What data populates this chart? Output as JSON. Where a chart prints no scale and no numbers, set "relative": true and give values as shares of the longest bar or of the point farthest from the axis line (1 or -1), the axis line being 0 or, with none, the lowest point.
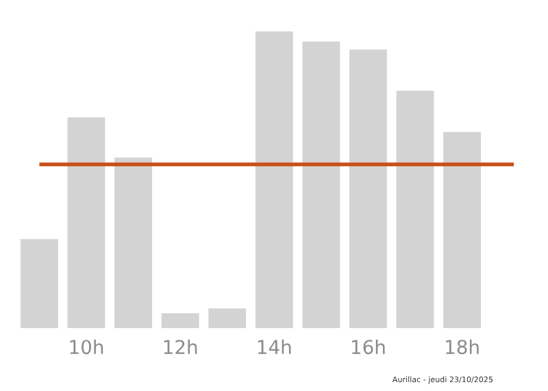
{
  "chart_data": {
    "type": "bar",
    "relative": true,
    "categories": [
      null,
      "10h",
      null,
      "12h",
      null,
      "14h",
      null,
      "16h",
      null,
      "18h"
    ],
    "values": [
      0.3,
      0.71,
      0.575,
      0.05,
      0.066,
      1,
      0.966,
      0.939,
      0.8,
      0.661
    ],
    "color": "#d3d3d3",
    "ref_lines": [
      {
        "axis": "y",
        "value": 0.552,
        "color": "#c8511b"
      }
    ],
    "annotations": [
      "Aurillac - jeudi 23/10/2025"
    ],
    "grid": false,
    "legend": false
  }
}
